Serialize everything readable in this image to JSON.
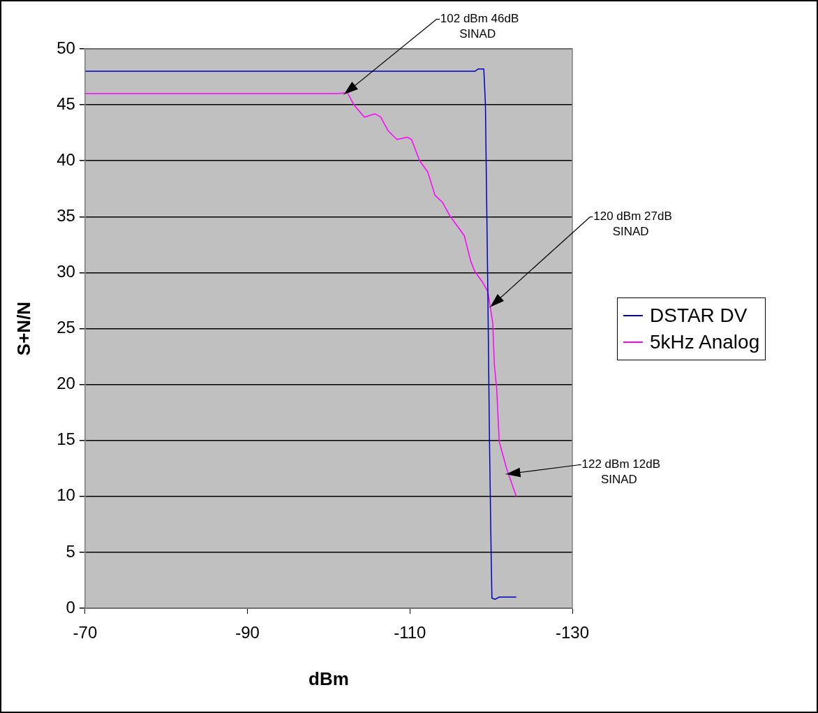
{
  "chart_data": {
    "type": "line",
    "xlabel": "dBm",
    "ylabel": "S+N/N",
    "xlim": [
      -70,
      -130
    ],
    "xticks": [
      -70,
      -90,
      -110,
      -130
    ],
    "ylim": [
      0,
      50
    ],
    "yticks": [
      0,
      5,
      10,
      15,
      20,
      25,
      30,
      35,
      40,
      45,
      50
    ],
    "grid": "y",
    "legend": "right",
    "marker": "none",
    "line_style": "solid",
    "series": [
      {
        "name": "DSTAR DV",
        "color": "#0000c0",
        "x": [
          -70,
          -118,
          -118.4,
          -119.1,
          -119.3,
          -119.6,
          -119.8,
          -120,
          -120.1,
          -120.5,
          -121,
          -123.1
        ],
        "values": [
          48,
          48,
          48.2,
          48.2,
          45,
          28,
          15,
          5,
          0.9,
          0.8,
          1,
          1
        ]
      },
      {
        "name": "5kHz Analog",
        "color": "#ff00ff",
        "x": [
          -70,
          -101.2,
          -102.3,
          -103.1,
          -104.4,
          -105.7,
          -106.4,
          -107.3,
          -108.4,
          -109.7,
          -110.2,
          -111.2,
          -112.2,
          -113.1,
          -114,
          -114.9,
          -116.7,
          -117.5,
          -118,
          -118.9,
          -119.6,
          -120.2,
          -120.4,
          -120.7,
          -121,
          -121.9,
          -123.1
        ],
        "values": [
          46,
          46,
          46.1,
          45,
          43.9,
          44.2,
          43.9,
          42.7,
          41.9,
          42.1,
          41.9,
          40,
          39,
          36.9,
          36.3,
          35.1,
          33.3,
          31,
          30.1,
          29.2,
          28.3,
          25.5,
          21.8,
          19.5,
          14.9,
          12.5,
          10
        ]
      }
    ],
    "annotations": [
      {
        "text": "-102 dBm 46dB\nSINAD",
        "x": -102,
        "y": 46
      },
      {
        "text": "-120 dBm 27dB\nSINAD",
        "x": -120,
        "y": 27
      },
      {
        "text": "-122 dBm 12dB\nSINAD",
        "x": -122,
        "y": 12
      }
    ]
  }
}
